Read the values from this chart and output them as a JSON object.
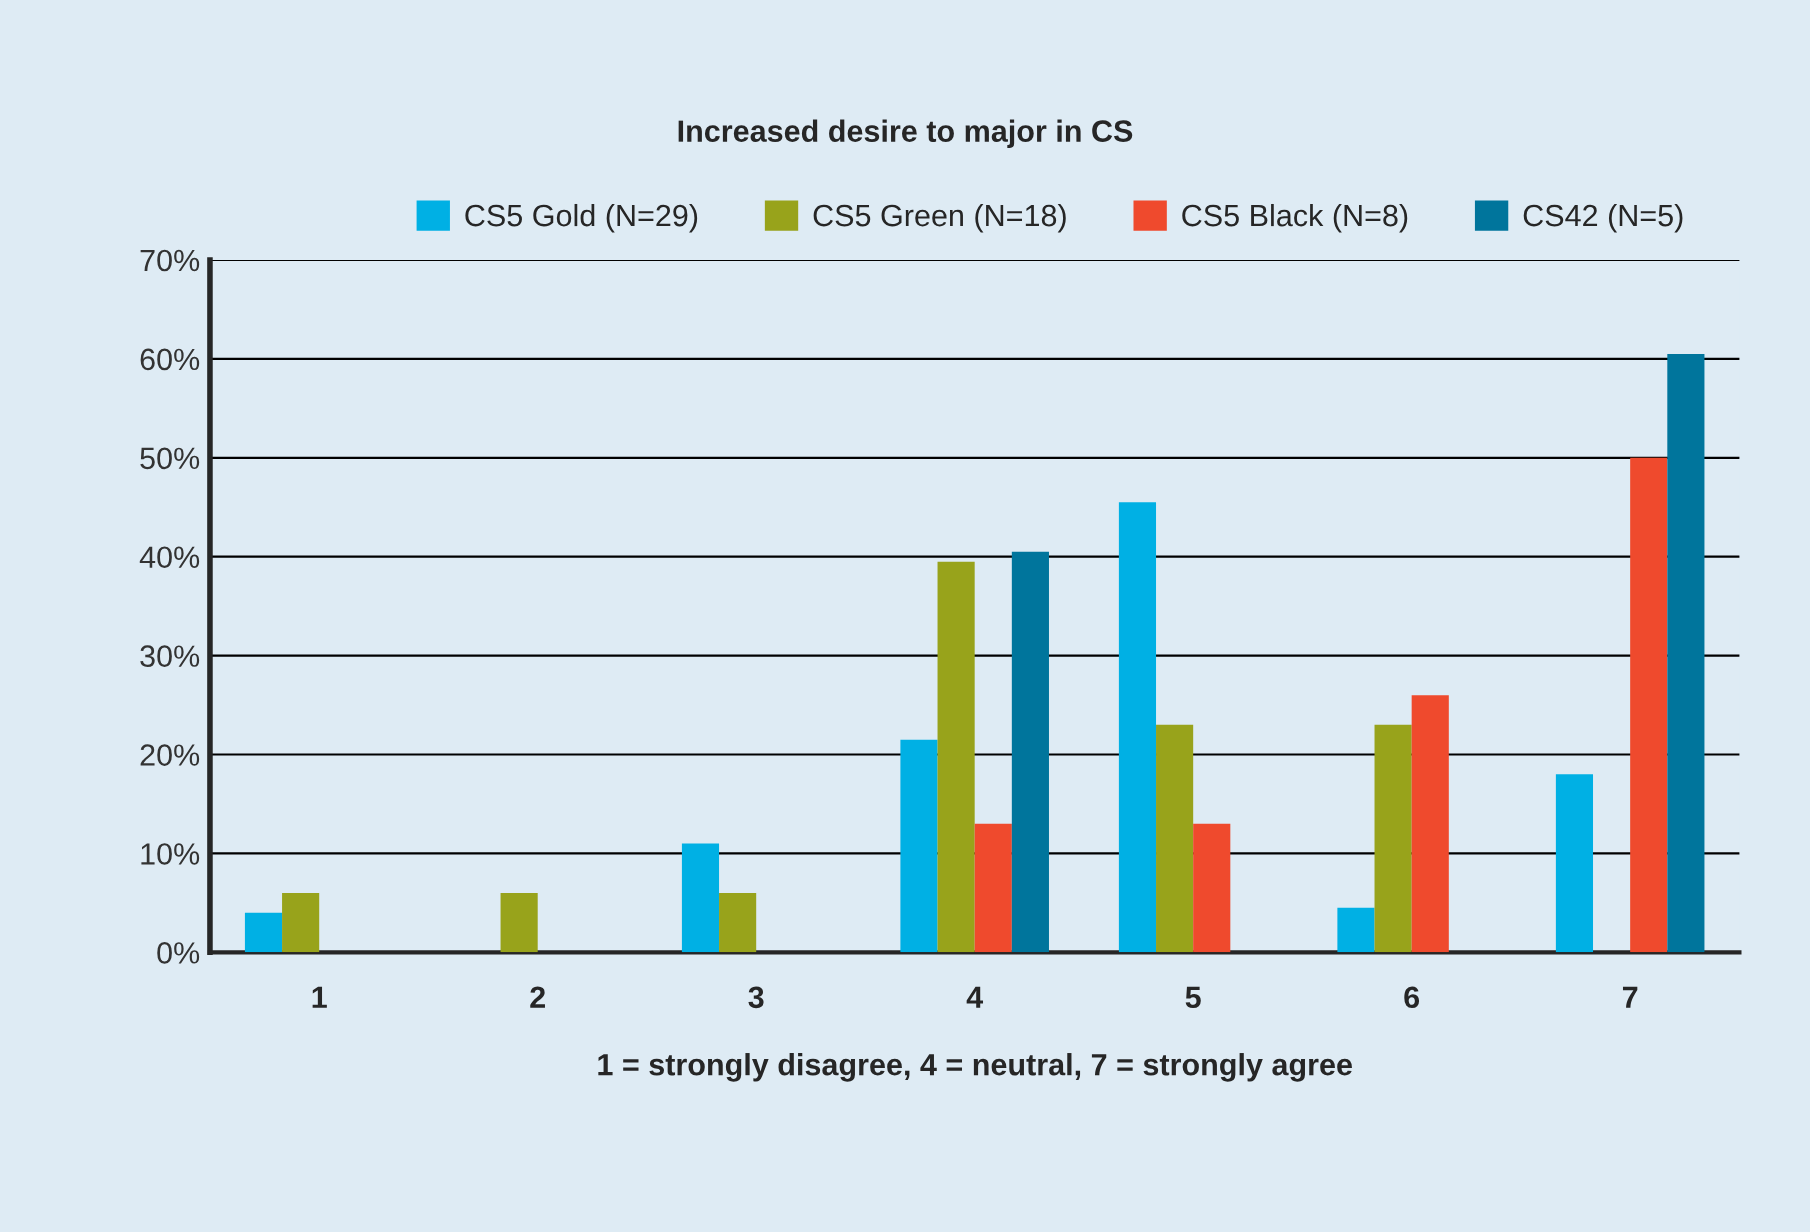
{
  "chart_data": {
    "type": "bar",
    "title": "Increased desire to major in CS",
    "xlabel": "1 = strongly disagree, 4 = neutral, 7 = strongly agree",
    "categories": [
      "1",
      "2",
      "3",
      "4",
      "5",
      "6",
      "7"
    ],
    "series": [
      {
        "name": "CS5 Gold (N=29)",
        "color": "#00b0e4",
        "values": [
          4,
          0,
          11,
          21.5,
          45.5,
          4.5,
          18
        ]
      },
      {
        "name": "CS5 Green (N=18)",
        "color": "#98a31b",
        "values": [
          6,
          6,
          6,
          39.5,
          23,
          23,
          0
        ]
      },
      {
        "name": "CS5 Black (N=8)",
        "color": "#ef4a2d",
        "values": [
          0,
          0,
          0,
          13,
          13,
          26,
          50
        ]
      },
      {
        "name": "CS42 (N=5)",
        "color": "#00759c",
        "values": [
          0,
          0,
          0,
          40.5,
          0,
          0,
          60.5
        ]
      }
    ],
    "ylim": [
      0,
      70
    ],
    "yticks": [
      {
        "value": 0,
        "label": "0%"
      },
      {
        "value": 10,
        "label": "10%"
      },
      {
        "value": 20,
        "label": "20%"
      },
      {
        "value": 30,
        "label": "30%"
      },
      {
        "value": 40,
        "label": "40%"
      },
      {
        "value": 50,
        "label": "50%"
      },
      {
        "value": 60,
        "label": "60%"
      },
      {
        "value": 70,
        "label": "70%"
      }
    ],
    "grid": "y",
    "legend": "top"
  }
}
